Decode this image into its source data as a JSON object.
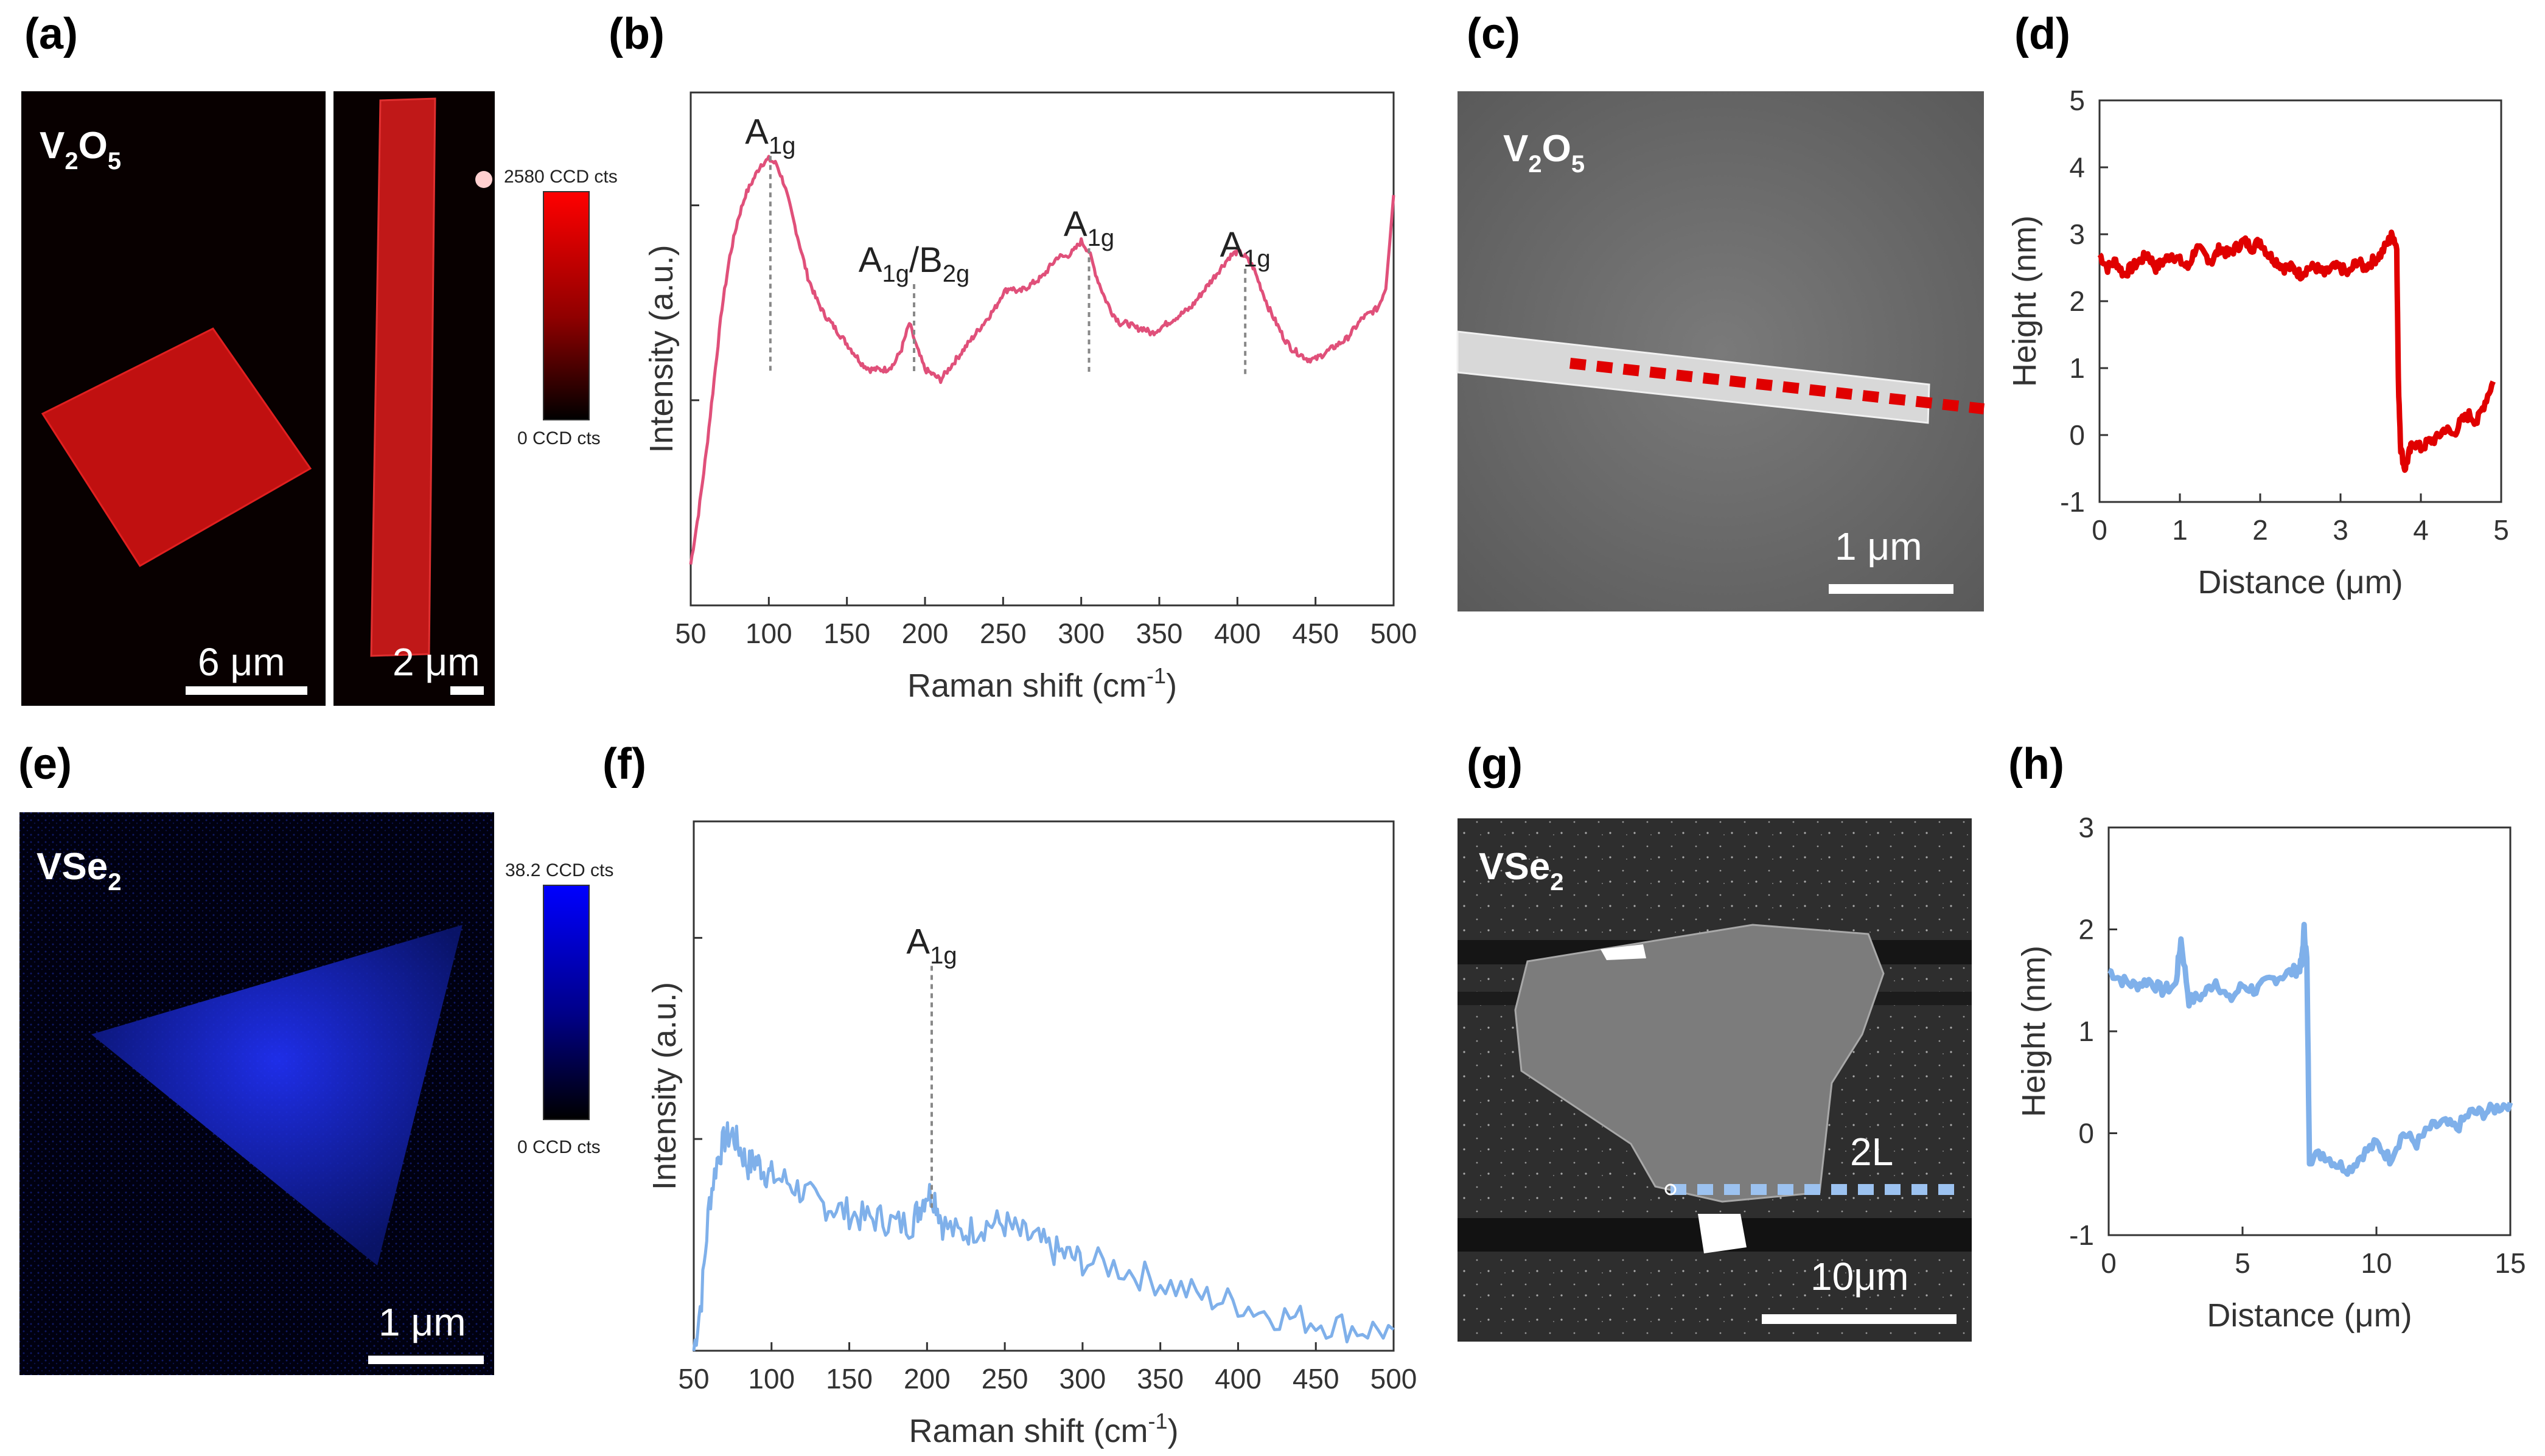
{
  "panels": {
    "a": {
      "label": "(a)",
      "material": "V",
      "material_sub": "2",
      "material_tail": "O",
      "material_sub2": "5",
      "scale_left": "6 μm",
      "scale_right": "2 μm",
      "colorbar_max": "2580 CCD cts",
      "colorbar_min": "0 CCD cts",
      "accent": "#e00000"
    },
    "b": {
      "label": "(b)"
    },
    "c": {
      "label": "(c)",
      "material": "V",
      "material_sub": "2",
      "material_tail": "O",
      "material_sub2": "5",
      "scale": "1 μm"
    },
    "d": {
      "label": "(d)"
    },
    "e": {
      "label": "(e)",
      "material": "VSe",
      "material_sub": "2",
      "scale": "1 μm",
      "colorbar_max": "38.2 CCD cts",
      "colorbar_min": "0 CCD cts",
      "accent": "#1010e0"
    },
    "f": {
      "label": "(f)"
    },
    "g": {
      "label": "(g)",
      "material": "VSe",
      "material_sub": "2",
      "layer_label": "2L",
      "scale": "10μm"
    },
    "h": {
      "label": "(h)"
    }
  },
  "chart_data": [
    {
      "id": "b",
      "type": "line",
      "xlabel": "Raman shift (cm",
      "xlabel_sup": "-1",
      "xlabel_tail": ")",
      "ylabel": "Intensity (a.u.)",
      "xlim": [
        50,
        500
      ],
      "xticks": [
        50,
        100,
        150,
        200,
        250,
        300,
        350,
        400,
        450,
        500
      ],
      "ylim": [
        0,
        1
      ],
      "color": "#e0507a",
      "series": [
        {
          "name": "V2O5",
          "x": [
            50,
            55,
            60,
            65,
            70,
            75,
            80,
            85,
            90,
            95,
            100,
            105,
            110,
            115,
            120,
            125,
            130,
            135,
            140,
            145,
            150,
            155,
            160,
            165,
            170,
            175,
            180,
            185,
            190,
            195,
            200,
            205,
            210,
            215,
            220,
            225,
            230,
            235,
            240,
            245,
            250,
            255,
            260,
            265,
            270,
            275,
            280,
            285,
            290,
            295,
            300,
            305,
            310,
            315,
            320,
            325,
            330,
            335,
            340,
            345,
            350,
            355,
            360,
            365,
            370,
            375,
            380,
            385,
            390,
            395,
            400,
            405,
            410,
            415,
            420,
            425,
            430,
            435,
            440,
            445,
            450,
            455,
            460,
            465,
            470,
            475,
            480,
            485,
            490,
            495,
            500
          ],
          "y": [
            0.08,
            0.18,
            0.3,
            0.44,
            0.58,
            0.68,
            0.75,
            0.8,
            0.83,
            0.86,
            0.87,
            0.86,
            0.82,
            0.76,
            0.7,
            0.64,
            0.6,
            0.57,
            0.55,
            0.53,
            0.51,
            0.49,
            0.47,
            0.46,
            0.46,
            0.46,
            0.47,
            0.5,
            0.55,
            0.5,
            0.46,
            0.45,
            0.44,
            0.46,
            0.48,
            0.5,
            0.52,
            0.54,
            0.56,
            0.58,
            0.61,
            0.62,
            0.61,
            0.62,
            0.63,
            0.64,
            0.66,
            0.68,
            0.68,
            0.69,
            0.71,
            0.69,
            0.64,
            0.6,
            0.57,
            0.55,
            0.55,
            0.54,
            0.54,
            0.53,
            0.54,
            0.55,
            0.56,
            0.57,
            0.58,
            0.6,
            0.62,
            0.64,
            0.66,
            0.68,
            0.69,
            0.68,
            0.66,
            0.62,
            0.58,
            0.55,
            0.52,
            0.5,
            0.49,
            0.48,
            0.48,
            0.49,
            0.5,
            0.51,
            0.52,
            0.54,
            0.56,
            0.57,
            0.58,
            0.62,
            0.8
          ]
        }
      ],
      "peaks": [
        {
          "x": 101,
          "label": "A",
          "sub": "1g",
          "y_top": 0.9
        },
        {
          "x": 193,
          "label": "A",
          "sub": "1g",
          "slash": "/B",
          "sub2": "2g",
          "y_top": 0.65
        },
        {
          "x": 305,
          "label": "A",
          "sub": "1g",
          "y_top": 0.72
        },
        {
          "x": 405,
          "label": "A",
          "sub": "1g",
          "y_top": 0.68
        }
      ]
    },
    {
      "id": "d",
      "type": "line",
      "xlabel": "Distance (μm)",
      "ylabel": "Height (nm)",
      "xlim": [
        0,
        5
      ],
      "xticks": [
        0,
        1,
        2,
        3,
        4,
        5
      ],
      "ylim": [
        -1,
        5
      ],
      "yticks": [
        -1,
        0,
        1,
        2,
        3,
        4,
        5
      ],
      "color": "#e00000",
      "series": [
        {
          "name": "V2O5 profile",
          "x": [
            0,
            0.1,
            0.2,
            0.3,
            0.4,
            0.5,
            0.6,
            0.7,
            0.8,
            0.9,
            1.0,
            1.1,
            1.2,
            1.3,
            1.4,
            1.5,
            1.6,
            1.7,
            1.8,
            1.9,
            2.0,
            2.1,
            2.2,
            2.3,
            2.4,
            2.5,
            2.6,
            2.7,
            2.8,
            2.9,
            3.0,
            3.1,
            3.2,
            3.3,
            3.4,
            3.5,
            3.6,
            3.65,
            3.7,
            3.72,
            3.75,
            3.8,
            3.85,
            3.9,
            4.0,
            4.1,
            4.2,
            4.3,
            4.4,
            4.5,
            4.6,
            4.7,
            4.8,
            4.9
          ],
          "y": [
            2.7,
            2.5,
            2.6,
            2.4,
            2.5,
            2.6,
            2.7,
            2.5,
            2.6,
            2.7,
            2.6,
            2.5,
            2.8,
            2.7,
            2.6,
            2.8,
            2.7,
            2.8,
            2.9,
            2.8,
            2.9,
            2.7,
            2.6,
            2.5,
            2.5,
            2.4,
            2.5,
            2.5,
            2.4,
            2.5,
            2.5,
            2.4,
            2.6,
            2.5,
            2.6,
            2.7,
            2.9,
            3.0,
            2.8,
            0.8,
            -0.2,
            -0.5,
            -0.3,
            -0.1,
            -0.2,
            -0.1,
            -0.05,
            0.1,
            0.0,
            0.2,
            0.3,
            0.2,
            0.5,
            0.8
          ]
        }
      ]
    },
    {
      "id": "f",
      "type": "line",
      "xlabel": "Raman shift (cm",
      "xlabel_sup": "-1",
      "xlabel_tail": ")",
      "ylabel": "Intensity (a.u.)",
      "xlim": [
        50,
        500
      ],
      "xticks": [
        50,
        100,
        150,
        200,
        250,
        300,
        350,
        400,
        450,
        500
      ],
      "ylim": [
        0,
        1
      ],
      "color": "#7fb0ea",
      "series": [
        {
          "name": "VSe2",
          "x": [
            50,
            55,
            60,
            65,
            70,
            75,
            80,
            85,
            90,
            95,
            100,
            110,
            120,
            130,
            140,
            150,
            160,
            170,
            180,
            190,
            195,
            200,
            205,
            210,
            220,
            230,
            240,
            250,
            260,
            270,
            280,
            290,
            300,
            320,
            340,
            360,
            380,
            400,
            420,
            440,
            460,
            480,
            500
          ],
          "y": [
            0.0,
            0.1,
            0.28,
            0.36,
            0.4,
            0.41,
            0.38,
            0.35,
            0.36,
            0.34,
            0.33,
            0.32,
            0.3,
            0.28,
            0.27,
            0.26,
            0.25,
            0.25,
            0.24,
            0.24,
            0.27,
            0.3,
            0.29,
            0.24,
            0.22,
            0.23,
            0.24,
            0.24,
            0.22,
            0.21,
            0.19,
            0.18,
            0.17,
            0.16,
            0.14,
            0.12,
            0.1,
            0.09,
            0.07,
            0.06,
            0.05,
            0.04,
            0.04
          ]
        }
      ],
      "peaks": [
        {
          "x": 203,
          "label": "A",
          "sub": "1g",
          "y_top": 0.75
        }
      ]
    },
    {
      "id": "h",
      "type": "line",
      "xlabel": "Distance (μm)",
      "ylabel": "Height (nm)",
      "xlim": [
        0,
        15
      ],
      "xticks": [
        0,
        5,
        10,
        15
      ],
      "ylim": [
        -1,
        3
      ],
      "yticks": [
        -1,
        0,
        1,
        2,
        3
      ],
      "color": "#7fb0ea",
      "series": [
        {
          "name": "VSe2 profile",
          "x": [
            0,
            0.5,
            1,
            1.5,
            2,
            2.5,
            2.7,
            3,
            3.5,
            4,
            4.5,
            5,
            5.5,
            6,
            6.5,
            7,
            7.2,
            7.3,
            7.4,
            7.5,
            8,
            8.5,
            9,
            9.5,
            10,
            10.5,
            11,
            11.5,
            12,
            12.5,
            13,
            13.5,
            14,
            14.5,
            15
          ],
          "y": [
            1.6,
            1.5,
            1.45,
            1.5,
            1.4,
            1.45,
            1.9,
            1.3,
            1.35,
            1.5,
            1.3,
            1.45,
            1.4,
            1.5,
            1.55,
            1.6,
            1.65,
            2.0,
            1.7,
            -0.25,
            -0.2,
            -0.3,
            -0.35,
            -0.2,
            -0.1,
            -0.25,
            0.0,
            -0.1,
            0.05,
            0.1,
            0.05,
            0.2,
            0.2,
            0.25,
            0.3
          ]
        }
      ]
    }
  ]
}
